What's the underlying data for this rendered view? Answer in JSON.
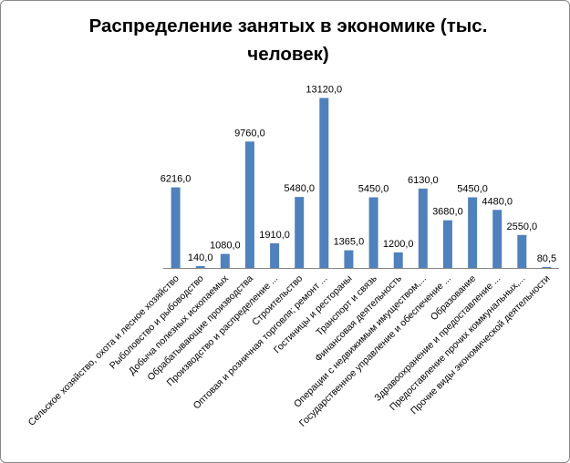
{
  "chart_data": {
    "type": "bar",
    "title": "Распределение занятых в экономике (тыс. человек)",
    "xlabel": "",
    "ylabel": "",
    "ylim": [
      0,
      14000
    ],
    "grid": false,
    "legend": "none",
    "bar_color": "#4F81BD",
    "categories": [
      "Сельское хозяйство, охота и лесное хозяйство",
      "Рыболовство и рыбоводство",
      "Добыча полезных ископаемых",
      "Обрабатывающие производства",
      "Производство и распределение ...",
      "Строительство",
      "Оптовая и розничная торговля; ремонт ...",
      "Гостиницы и рестораны",
      "Транспорт и связь",
      "Финансовая деятельность",
      "Операции с недвижимым имуществом,...",
      "Государственное управление и обеспечение ...",
      "Образование",
      "Здравоохранение и предоставление ...",
      "Предоставление прочих коммунальных,...",
      "Прочие виды экономической деятельности"
    ],
    "values": [
      6216.0,
      140.0,
      1080.0,
      9760.0,
      1910.0,
      5480.0,
      13120.0,
      1365.0,
      5450.0,
      1200.0,
      6130.0,
      3680.0,
      5450.0,
      4480.0,
      2550.0,
      80.5
    ],
    "data_labels": [
      "6216,0",
      "140,0",
      "1080,0",
      "9760,0",
      "1910,0",
      "5480,0",
      "13120,0",
      "1365,0",
      "5450,0",
      "1200,0",
      "6130,0",
      "3680,0",
      "5450,0",
      "4480,0",
      "2550,0",
      "80,5"
    ]
  }
}
